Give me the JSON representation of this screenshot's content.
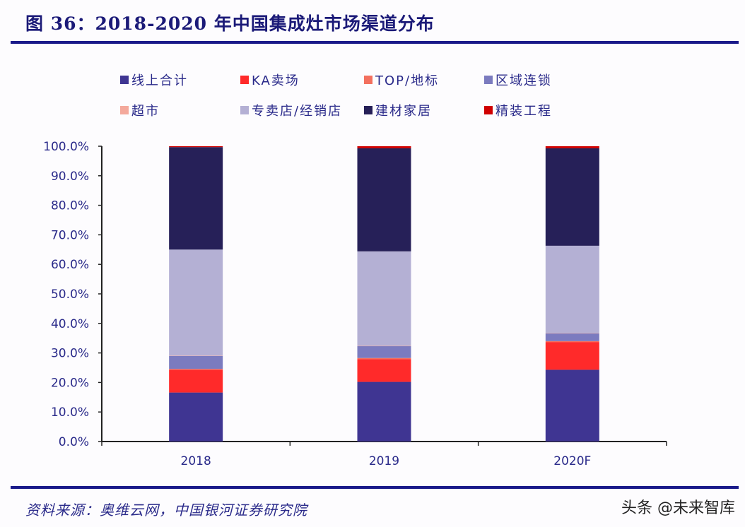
{
  "title": "图 36：2018-2020 年中国集成灶市场渠道分布",
  "source": "资料来源：奥维云网，中国银河证券研究院",
  "watermark": "头条 @未来智库",
  "chart_data": {
    "type": "bar",
    "stacked": true,
    "categories": [
      "2018",
      "2019",
      "2020F"
    ],
    "ylim": [
      0,
      100
    ],
    "yticks": [
      "0.0%",
      "10.0%",
      "20.0%",
      "30.0%",
      "40.0%",
      "50.0%",
      "60.0%",
      "70.0%",
      "80.0%",
      "90.0%",
      "100.0%"
    ],
    "grid": false,
    "legend_position": "top",
    "series": [
      {
        "name": "线上合计",
        "color": "#3f3592",
        "values": [
          16.6,
          20.2,
          24.3
        ]
      },
      {
        "name": "KA卖场",
        "color": "#ff2a2a",
        "values": [
          7.7,
          7.7,
          9.4
        ]
      },
      {
        "name": "TOP/地标",
        "color": "#f3705f",
        "values": [
          0.3,
          0.4,
          0.3
        ]
      },
      {
        "name": "区域连锁",
        "color": "#7b7bbf",
        "values": [
          4.4,
          4.0,
          2.6
        ]
      },
      {
        "name": "超市",
        "color": "#f4a99c",
        "values": [
          0.1,
          0.1,
          0.1
        ]
      },
      {
        "name": "专卖店/经销店",
        "color": "#b4b0d4",
        "values": [
          35.9,
          32.0,
          29.6
        ]
      },
      {
        "name": "建材家居",
        "color": "#262058",
        "values": [
          34.7,
          34.9,
          33.0
        ]
      },
      {
        "name": "精装工程",
        "color": "#d00000",
        "values": [
          0.3,
          0.7,
          0.7
        ]
      }
    ]
  }
}
